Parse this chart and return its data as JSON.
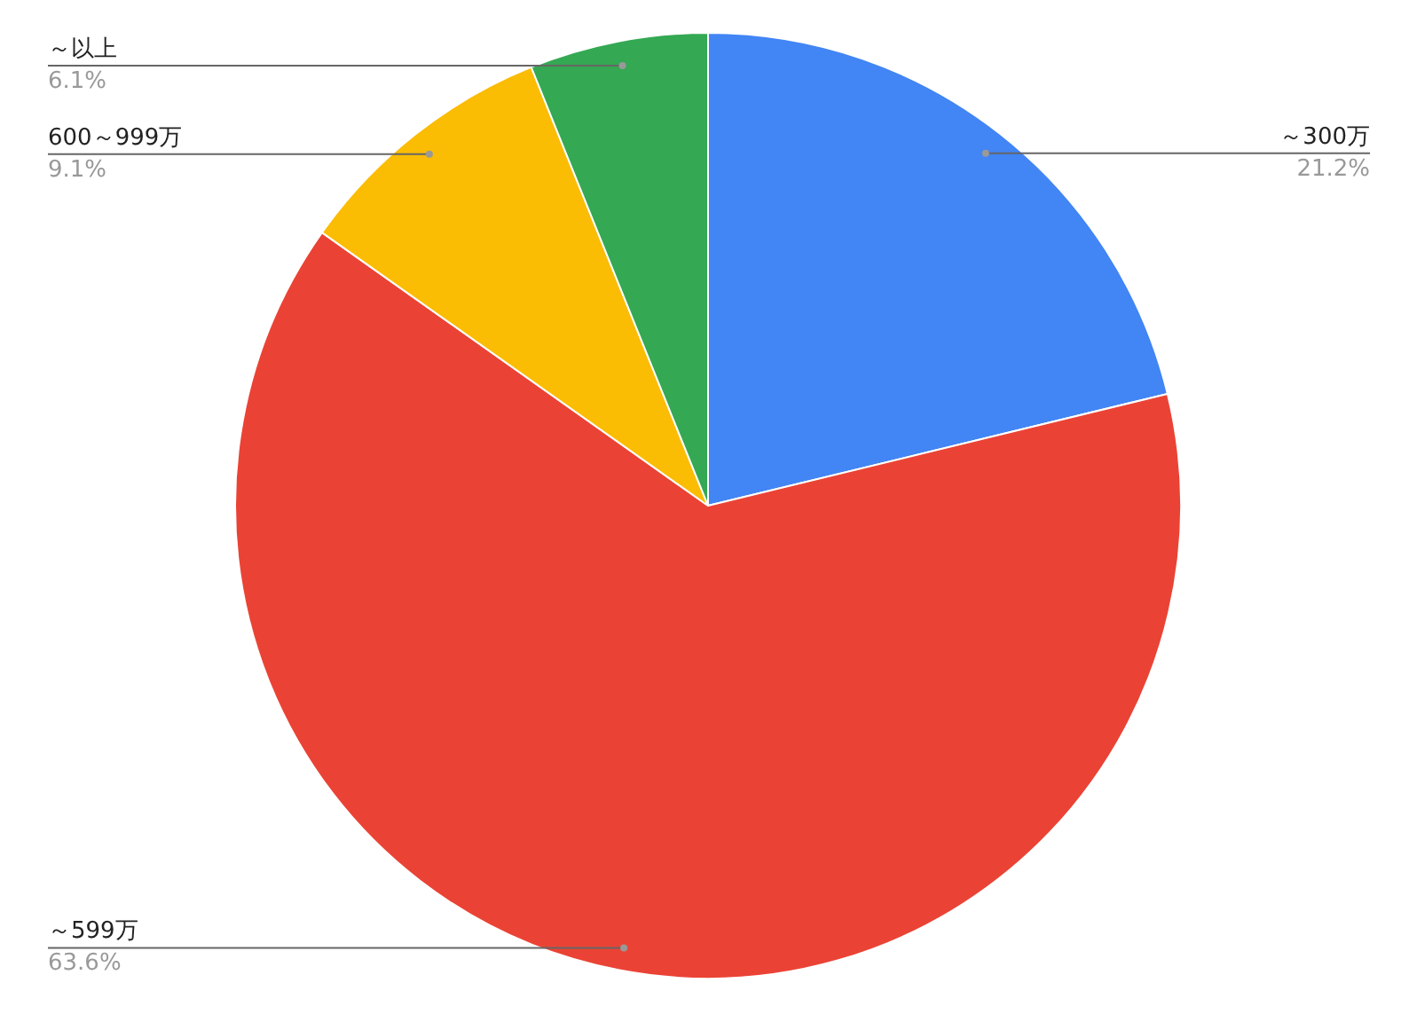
{
  "chart_data": {
    "type": "pie",
    "categories": [
      "～300万",
      "～599万",
      "600～999万",
      "～以上"
    ],
    "values": [
      21.2,
      63.6,
      9.1,
      6.1
    ],
    "colors": [
      "#4285f4",
      "#ea4335",
      "#fbbc04",
      "#34a853"
    ],
    "value_labels": [
      "21.2%",
      "63.6%",
      "9.1%",
      "6.1%"
    ],
    "legend": false
  }
}
